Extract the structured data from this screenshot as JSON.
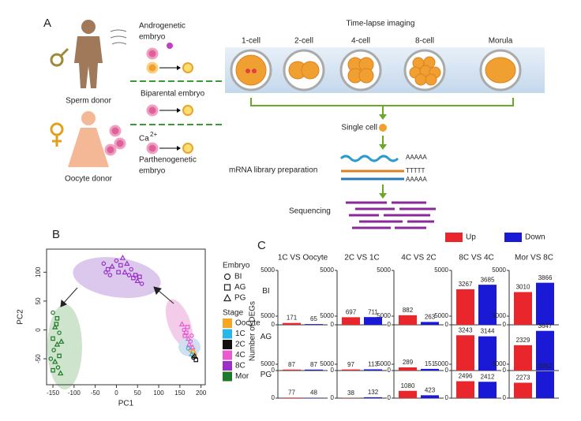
{
  "panel_a": {
    "label": "A",
    "sperm_donor": "Sperm donor",
    "oocyte_donor": "Oocyte donor",
    "androgenetic": [
      "Androgenetic",
      "embryo"
    ],
    "biparental": "Biparental embryo",
    "calcium": "Ca",
    "calcium_charge": "2+",
    "parthenogenetic": [
      "Parthenogenetic",
      "embryo"
    ],
    "timelapse": "Time-lapse imaging",
    "stages": [
      "1-cell",
      "2-cell",
      "4-cell",
      "8-cell",
      "Morula"
    ],
    "single_cell": "Single cell",
    "library": "mRNA library preparation",
    "poly_a_top": "AAAAA",
    "poly_t": "TTTTT",
    "poly_a_bottom": "AAAAA",
    "sequencing": "Sequencing"
  },
  "panel_b": {
    "label": "B",
    "chart_data": {
      "type": "scatter",
      "x_label": "PC1",
      "y_label": "PC2",
      "xlim": [
        -165,
        210
      ],
      "ylim": [
        -95,
        140
      ],
      "xticks": [
        -150,
        -100,
        -50,
        0,
        50,
        100,
        150,
        200
      ],
      "yticks": [
        -50,
        0,
        50,
        100
      ],
      "embryo_title": "Embryo",
      "stage_title": "Stage",
      "embryo_legend": [
        {
          "name": "BI",
          "shape": "circle"
        },
        {
          "name": "AG",
          "shape": "square"
        },
        {
          "name": "PG",
          "shape": "triangle"
        }
      ],
      "series": [
        {
          "name": "Oocyte",
          "color": "#f5a623",
          "x": [
            175,
            180,
            185
          ],
          "y": [
            -35,
            -38,
            -40
          ],
          "embryo": [
            0,
            1,
            2
          ]
        },
        {
          "name": "1C",
          "color": "#29b6e8",
          "x": [
            170,
            178
          ],
          "y": [
            -32,
            -42
          ],
          "embryo": [
            0,
            2
          ]
        },
        {
          "name": "2C",
          "color": "#111111",
          "x": [
            182,
            188,
            185
          ],
          "y": [
            -48,
            -52,
            -45
          ],
          "embryo": [
            0,
            1,
            2
          ]
        },
        {
          "name": "4C",
          "color": "#e85ad0",
          "x": [
            155,
            160,
            165,
            170,
            175,
            168,
            172,
            178,
            162,
            180
          ],
          "y": [
            10,
            0,
            -5,
            -15,
            -20,
            5,
            -25,
            -10,
            -10,
            -30
          ],
          "embryo": [
            2,
            0,
            1,
            2,
            0,
            1,
            2,
            0,
            1,
            2
          ]
        },
        {
          "name": "8C",
          "color": "#9b30c8",
          "x": [
            -30,
            -20,
            -10,
            0,
            10,
            20,
            30,
            40,
            50,
            60,
            -15,
            5,
            25,
            35,
            45,
            15,
            -25,
            55
          ],
          "y": [
            115,
            105,
            110,
            120,
            112,
            100,
            95,
            90,
            85,
            80,
            95,
            100,
            115,
            105,
            95,
            125,
            100,
            92
          ],
          "embryo": [
            0,
            1,
            2,
            0,
            1,
            2,
            0,
            1,
            2,
            0,
            0,
            1,
            2,
            0,
            1,
            2,
            0,
            1
          ]
        },
        {
          "name": "Mor",
          "color": "#1e7a2a",
          "x": [
            -150,
            -140,
            -145,
            -135,
            -150,
            -140,
            -148,
            -135,
            -145,
            -138,
            -150,
            -130,
            -155,
            -142,
            -132
          ],
          "y": [
            30,
            20,
            5,
            -5,
            -15,
            -25,
            -35,
            -45,
            -55,
            -65,
            -70,
            -20,
            -50,
            10,
            -75
          ],
          "embryo": [
            0,
            1,
            2,
            0,
            1,
            2,
            0,
            1,
            2,
            0,
            1,
            2,
            0,
            1,
            2
          ]
        }
      ]
    }
  },
  "panel_c": {
    "label": "C",
    "chart_data": {
      "type": "bar",
      "y_label": "Number of DEGs",
      "ylim": [
        0,
        5000
      ],
      "yticks": [
        0,
        5000
      ],
      "columns": [
        "1C VS Oocyte",
        "2C VS 1C",
        "4C VS 2C",
        "8C VS 4C",
        "Mor VS 8C"
      ],
      "rows": [
        "BI",
        "AG",
        "PG"
      ],
      "series": [
        {
          "name": "Up",
          "color": "#e8262b",
          "values": [
            [
              171,
              697,
              882,
              3267,
              3010
            ],
            [
              87,
              97,
              289,
              3243,
              2329
            ],
            [
              77,
              38,
              1080,
              2496,
              2273
            ]
          ]
        },
        {
          "name": "Down",
          "color": "#1a1ad6",
          "values": [
            [
              65,
              711,
              263,
              3685,
              3866
            ],
            [
              87,
              113,
              151,
              3144,
              3647
            ],
            [
              48,
              132,
              423,
              2412,
              3952
            ]
          ]
        }
      ]
    }
  }
}
